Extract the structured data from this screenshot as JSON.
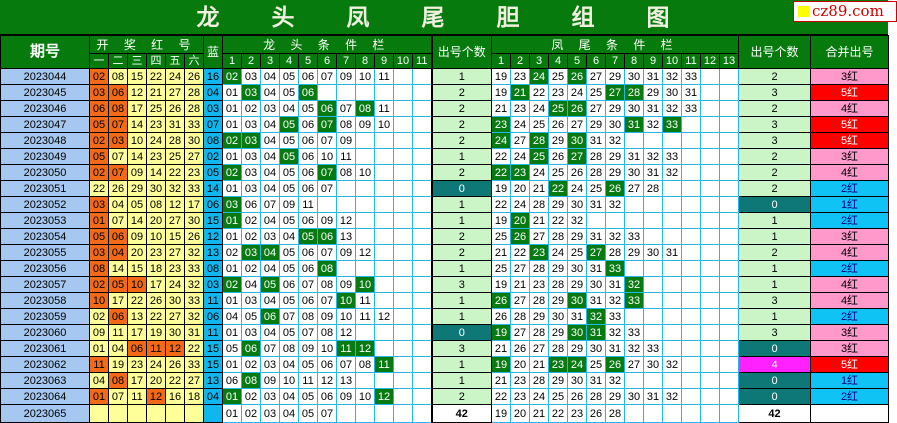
{
  "title": "龙 头 凤 尾 胆 组 图",
  "logo": "cz89.com",
  "headers": {
    "period": "期号",
    "red_group": "开 奖 红 号",
    "red_cols": [
      "一",
      "二",
      "三",
      "四",
      "五",
      "六"
    ],
    "blue": "蓝",
    "head_group": "龙 头 条 件 栏",
    "head_cols": [
      "1",
      "2",
      "3",
      "4",
      "5",
      "6",
      "7",
      "8",
      "9",
      "10",
      "11"
    ],
    "head_count": "出号个数",
    "tail_group": "凤 尾 条 件 栏",
    "tail_cols": [
      "1",
      "2",
      "3",
      "4",
      "5",
      "6",
      "7",
      "8",
      "9",
      "10",
      "11",
      "12",
      "13"
    ],
    "tail_count": "出号个数",
    "merged": "合并出号"
  },
  "colors": {
    "title_bg": "#067a0c",
    "hit": "#087a12",
    "red_hit": "#f26a16",
    "red": "#ffff99",
    "blue": "#10b6ee",
    "merged_5": "#ff0000",
    "merged_3_4": "#ff99cc",
    "merged_1_2": "#0fc4f4",
    "zero": "#0e7877",
    "four": "#ff21ff"
  },
  "rows": [
    {
      "period": "2023044",
      "red": [
        "02",
        "08",
        "15",
        "22",
        "24",
        "26"
      ],
      "red_hit": [
        "02"
      ],
      "blue": "16",
      "head": [
        "02",
        "03",
        "04",
        "05",
        "06",
        "07",
        "09",
        "10",
        "11"
      ],
      "head_hit": [
        "02"
      ],
      "head_count": "1",
      "tail": [
        "19",
        "23",
        "24",
        "25",
        "26",
        "27",
        "29",
        "30",
        "31",
        "32",
        "33"
      ],
      "tail_hit": [
        "24",
        "26"
      ],
      "tail_count": "2",
      "merged": "3红"
    },
    {
      "period": "2023045",
      "red": [
        "03",
        "06",
        "12",
        "21",
        "27",
        "28"
      ],
      "red_hit": [
        "03",
        "06"
      ],
      "blue": "04",
      "head": [
        "01",
        "03",
        "04",
        "05",
        "06"
      ],
      "head_hit": [
        "03",
        "06"
      ],
      "head_count": "2",
      "tail": [
        "19",
        "21",
        "22",
        "23",
        "24",
        "25",
        "27",
        "28",
        "29",
        "30",
        "31"
      ],
      "tail_hit": [
        "21",
        "27",
        "28"
      ],
      "tail_count": "3",
      "merged": "5红"
    },
    {
      "period": "2023046",
      "red": [
        "06",
        "08",
        "17",
        "25",
        "26",
        "28"
      ],
      "red_hit": [
        "06",
        "08"
      ],
      "blue": "03",
      "head": [
        "01",
        "02",
        "03",
        "04",
        "05",
        "06",
        "07",
        "08",
        "11"
      ],
      "head_hit": [
        "06",
        "08"
      ],
      "head_count": "2",
      "tail": [
        "21",
        "23",
        "24",
        "25",
        "26",
        "27",
        "29",
        "30",
        "31",
        "32",
        "33"
      ],
      "tail_hit": [
        "25",
        "26"
      ],
      "tail_count": "2",
      "merged": "4红"
    },
    {
      "period": "2023047",
      "red": [
        "05",
        "07",
        "14",
        "23",
        "31",
        "33"
      ],
      "red_hit": [
        "05",
        "07"
      ],
      "blue": "07",
      "head": [
        "01",
        "03",
        "04",
        "05",
        "06",
        "07",
        "08",
        "09",
        "10"
      ],
      "head_hit": [
        "05",
        "07"
      ],
      "head_count": "2",
      "tail": [
        "23",
        "24",
        "25",
        "26",
        "27",
        "29",
        "30",
        "31",
        "32",
        "33"
      ],
      "tail_hit": [
        "23",
        "31",
        "33"
      ],
      "tail_count": "3",
      "merged": "5红"
    },
    {
      "period": "2023048",
      "red": [
        "02",
        "03",
        "10",
        "24",
        "28",
        "30"
      ],
      "red_hit": [
        "02",
        "03"
      ],
      "blue": "08",
      "head": [
        "02",
        "03",
        "04",
        "05",
        "06",
        "07",
        "09"
      ],
      "head_hit": [
        "02",
        "03"
      ],
      "head_count": "2",
      "tail": [
        "24",
        "27",
        "28",
        "29",
        "30",
        "31",
        "32"
      ],
      "tail_hit": [
        "24",
        "28",
        "30"
      ],
      "tail_count": "3",
      "merged": "5红"
    },
    {
      "period": "2023049",
      "red": [
        "05",
        "07",
        "14",
        "23",
        "25",
        "27"
      ],
      "red_hit": [
        "05"
      ],
      "blue": "02",
      "head": [
        "01",
        "03",
        "04",
        "05",
        "06",
        "10",
        "11"
      ],
      "head_hit": [
        "05"
      ],
      "head_count": "1",
      "tail": [
        "22",
        "24",
        "25",
        "26",
        "27",
        "28",
        "29",
        "31",
        "32",
        "33"
      ],
      "tail_hit": [
        "25",
        "27"
      ],
      "tail_count": "2",
      "merged": "3红"
    },
    {
      "period": "2023050",
      "red": [
        "02",
        "07",
        "09",
        "14",
        "22",
        "23"
      ],
      "red_hit": [
        "02",
        "07"
      ],
      "blue": "05",
      "head": [
        "02",
        "03",
        "04",
        "05",
        "06",
        "07",
        "08",
        "10"
      ],
      "head_hit": [
        "02",
        "07"
      ],
      "head_count": "2",
      "tail": [
        "22",
        "23",
        "24",
        "25",
        "26",
        "28",
        "29",
        "30",
        "31",
        "32"
      ],
      "tail_hit": [
        "22",
        "23"
      ],
      "tail_count": "2",
      "merged": "4红"
    },
    {
      "period": "2023051",
      "red": [
        "22",
        "26",
        "29",
        "30",
        "32",
        "33"
      ],
      "red_hit": [],
      "blue": "14",
      "head": [
        "01",
        "03",
        "04",
        "05",
        "06",
        "07"
      ],
      "head_hit": [],
      "head_count": "0",
      "tail": [
        "19",
        "20",
        "21",
        "22",
        "24",
        "25",
        "26",
        "27",
        "28"
      ],
      "tail_hit": [
        "22",
        "26"
      ],
      "tail_count": "2",
      "merged": "2红"
    },
    {
      "period": "2023052",
      "red": [
        "03",
        "04",
        "05",
        "08",
        "12",
        "17"
      ],
      "red_hit": [
        "03"
      ],
      "blue": "06",
      "head": [
        "03",
        "06",
        "07",
        "09",
        "11"
      ],
      "head_hit": [
        "03"
      ],
      "head_count": "1",
      "tail": [
        "22",
        "24",
        "28",
        "29",
        "30",
        "31",
        "32"
      ],
      "tail_hit": [],
      "tail_count": "0",
      "merged": "1红"
    },
    {
      "period": "2023053",
      "red": [
        "01",
        "07",
        "14",
        "20",
        "27",
        "30"
      ],
      "red_hit": [
        "01"
      ],
      "blue": "15",
      "head": [
        "01",
        "02",
        "04",
        "05",
        "06",
        "09",
        "12"
      ],
      "head_hit": [
        "01"
      ],
      "head_count": "1",
      "tail": [
        "19",
        "20",
        "21",
        "22",
        "32"
      ],
      "tail_hit": [
        "20"
      ],
      "tail_count": "1",
      "merged": "2红"
    },
    {
      "period": "2023054",
      "red": [
        "05",
        "06",
        "09",
        "10",
        "15",
        "26"
      ],
      "red_hit": [
        "05",
        "06"
      ],
      "blue": "12",
      "head": [
        "01",
        "02",
        "03",
        "04",
        "05",
        "06",
        "13"
      ],
      "head_hit": [
        "05",
        "06"
      ],
      "head_count": "2",
      "tail": [
        "25",
        "26",
        "27",
        "28",
        "29",
        "31",
        "32",
        "33"
      ],
      "tail_hit": [
        "26"
      ],
      "tail_count": "1",
      "merged": "3红"
    },
    {
      "period": "2023055",
      "red": [
        "03",
        "04",
        "20",
        "23",
        "27",
        "32"
      ],
      "red_hit": [
        "03",
        "04"
      ],
      "blue": "13",
      "head": [
        "02",
        "03",
        "04",
        "05",
        "06",
        "07",
        "09",
        "12"
      ],
      "head_hit": [
        "03",
        "04"
      ],
      "head_count": "2",
      "tail": [
        "21",
        "22",
        "23",
        "24",
        "25",
        "27",
        "28",
        "29",
        "30",
        "31"
      ],
      "tail_hit": [
        "23",
        "27"
      ],
      "tail_count": "2",
      "merged": "4红"
    },
    {
      "period": "2023056",
      "red": [
        "08",
        "14",
        "15",
        "18",
        "23",
        "33"
      ],
      "red_hit": [
        "08"
      ],
      "blue": "08",
      "head": [
        "01",
        "02",
        "04",
        "05",
        "06",
        "08"
      ],
      "head_hit": [
        "08"
      ],
      "head_count": "1",
      "tail": [
        "25",
        "27",
        "28",
        "29",
        "30",
        "31",
        "33"
      ],
      "tail_hit": [
        "33"
      ],
      "tail_count": "1",
      "merged": "2红"
    },
    {
      "period": "2023057",
      "red": [
        "02",
        "05",
        "10",
        "17",
        "24",
        "32"
      ],
      "red_hit": [
        "02",
        "05",
        "10"
      ],
      "blue": "03",
      "head": [
        "02",
        "04",
        "05",
        "06",
        "07",
        "08",
        "09",
        "10"
      ],
      "head_hit": [
        "02",
        "05",
        "10"
      ],
      "head_count": "3",
      "tail": [
        "19",
        "21",
        "23",
        "28",
        "29",
        "30",
        "31",
        "32"
      ],
      "tail_hit": [
        "32"
      ],
      "tail_count": "1",
      "merged": "4红"
    },
    {
      "period": "2023058",
      "red": [
        "10",
        "17",
        "22",
        "26",
        "30",
        "33"
      ],
      "red_hit": [
        "10"
      ],
      "blue": "11",
      "head": [
        "01",
        "03",
        "04",
        "05",
        "06",
        "07",
        "10",
        "11"
      ],
      "head_hit": [
        "10"
      ],
      "head_count": "1",
      "tail": [
        "26",
        "27",
        "28",
        "29",
        "30",
        "31",
        "32",
        "33"
      ],
      "tail_hit": [
        "26",
        "30",
        "33"
      ],
      "tail_count": "3",
      "merged": "4红"
    },
    {
      "period": "2023059",
      "red": [
        "02",
        "06",
        "13",
        "22",
        "27",
        "32"
      ],
      "red_hit": [
        "06"
      ],
      "blue": "06",
      "head": [
        "04",
        "05",
        "06",
        "07",
        "08",
        "09",
        "10",
        "11",
        "12"
      ],
      "head_hit": [
        "06"
      ],
      "head_count": "1",
      "tail": [
        "26",
        "28",
        "29",
        "30",
        "31",
        "32",
        "33"
      ],
      "tail_hit": [
        "32"
      ],
      "tail_count": "1",
      "merged": "2红"
    },
    {
      "period": "2023060",
      "red": [
        "09",
        "11",
        "17",
        "19",
        "30",
        "31"
      ],
      "red_hit": [],
      "blue": "11",
      "head": [
        "01",
        "03",
        "04",
        "05",
        "07",
        "08",
        "12"
      ],
      "head_hit": [],
      "head_count": "0",
      "tail": [
        "19",
        "27",
        "28",
        "29",
        "30",
        "31",
        "32",
        "33"
      ],
      "tail_hit": [
        "19",
        "30",
        "31"
      ],
      "tail_count": "3",
      "merged": "3红"
    },
    {
      "period": "2023061",
      "red": [
        "01",
        "04",
        "06",
        "11",
        "12",
        "22"
      ],
      "red_hit": [
        "06",
        "11",
        "12"
      ],
      "blue": "15",
      "head": [
        "05",
        "06",
        "07",
        "08",
        "09",
        "10",
        "11",
        "12"
      ],
      "head_hit": [
        "06",
        "11",
        "12"
      ],
      "head_count": "3",
      "tail": [
        "21",
        "26",
        "27",
        "28",
        "29",
        "30",
        "31",
        "32",
        "33"
      ],
      "tail_hit": [],
      "tail_count": "0",
      "merged": "3红"
    },
    {
      "period": "2023062",
      "red": [
        "11",
        "19",
        "23",
        "24",
        "26",
        "33"
      ],
      "red_hit": [
        "11"
      ],
      "blue": "15",
      "head": [
        "01",
        "02",
        "03",
        "04",
        "05",
        "06",
        "07",
        "08",
        "11"
      ],
      "head_hit": [
        "11"
      ],
      "head_count": "1",
      "tail": [
        "19",
        "20",
        "21",
        "23",
        "24",
        "25",
        "26",
        "27",
        "30",
        "32"
      ],
      "tail_hit": [
        "19",
        "23",
        "24",
        "26"
      ],
      "tail_count": "4",
      "merged": "5红"
    },
    {
      "period": "2023063",
      "red": [
        "04",
        "08",
        "17",
        "20",
        "22",
        "27"
      ],
      "red_hit": [
        "08"
      ],
      "blue": "13",
      "head": [
        "06",
        "08",
        "09",
        "10",
        "11",
        "12",
        "13"
      ],
      "head_hit": [
        "08"
      ],
      "head_count": "1",
      "tail": [
        "21",
        "23",
        "28",
        "29",
        "30",
        "31",
        "32"
      ],
      "tail_hit": [],
      "tail_count": "0",
      "merged": "1红"
    },
    {
      "period": "2023064",
      "red": [
        "01",
        "07",
        "11",
        "12",
        "16",
        "18"
      ],
      "red_hit": [
        "01",
        "12"
      ],
      "blue": "04",
      "head": [
        "01",
        "02",
        "03",
        "04",
        "05",
        "06",
        "09",
        "10",
        "12"
      ],
      "head_hit": [
        "01",
        "12"
      ],
      "head_count": "2",
      "tail": [
        "22",
        "23",
        "24",
        "25",
        "26",
        "28",
        "29",
        "30",
        "31",
        "32"
      ],
      "tail_hit": [],
      "tail_count": "0",
      "merged": "2红"
    },
    {
      "period": "2023065",
      "red": [
        "",
        "",
        "",
        "",
        "",
        ""
      ],
      "red_hit": [],
      "blue": "",
      "head": [
        "01",
        "02",
        "03",
        "04",
        "05",
        "07"
      ],
      "head_hit": [],
      "head_count": "42",
      "tail": [
        "19",
        "20",
        "21",
        "22",
        "23",
        "26",
        "28"
      ],
      "tail_hit": [],
      "tail_count": "42",
      "merged": ""
    }
  ]
}
